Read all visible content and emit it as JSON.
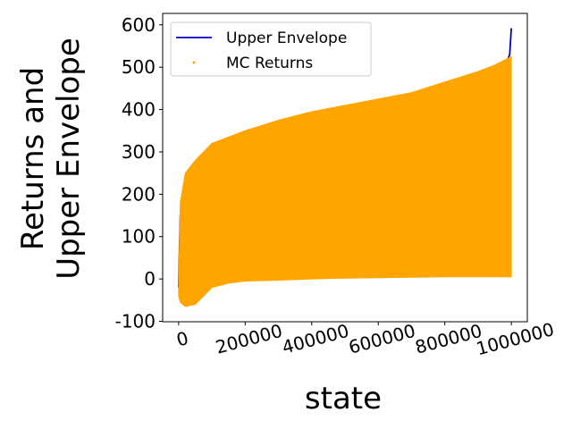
{
  "chart_data": {
    "type": "line",
    "xlabel": "state",
    "ylabel": [
      "Returns and",
      "Upper Envelope"
    ],
    "xlim": [
      -48000,
      1048000
    ],
    "ylim": [
      -101,
      627
    ],
    "xticks": [
      0,
      200000,
      400000,
      600000,
      800000,
      1000000
    ],
    "yticks": [
      -100,
      0,
      100,
      200,
      300,
      400,
      500,
      600
    ],
    "legend": "upper left",
    "series": [
      {
        "name": "Upper Envelope",
        "color": "#0000cc",
        "kind": "line",
        "x": [
          0,
          2000,
          5000,
          10000,
          30000,
          50000,
          100000,
          150000,
          200000,
          300000,
          400000,
          500000,
          600000,
          700000,
          800000,
          900000,
          950000,
          980000,
          995000,
          1000000
        ],
        "values": [
          -20,
          50,
          150,
          170,
          210,
          240,
          285,
          315,
          330,
          355,
          378,
          393,
          408,
          422,
          440,
          460,
          478,
          500,
          530,
          592
        ]
      },
      {
        "name": "MC Returns",
        "color": "#ffa500",
        "kind": "band",
        "x": [
          0,
          5000,
          20000,
          50000,
          100000,
          150000,
          200000,
          300000,
          400000,
          500000,
          600000,
          700000,
          800000,
          900000,
          950000,
          1000000
        ],
        "values": [
          -10,
          180,
          250,
          280,
          320,
          335,
          350,
          375,
          395,
          410,
          425,
          440,
          465,
          490,
          505,
          525
        ],
        "lower": [
          -40,
          -55,
          -65,
          -60,
          -20,
          -10,
          -5,
          -3,
          0,
          2,
          3,
          4,
          5,
          5,
          5,
          5
        ]
      }
    ]
  }
}
